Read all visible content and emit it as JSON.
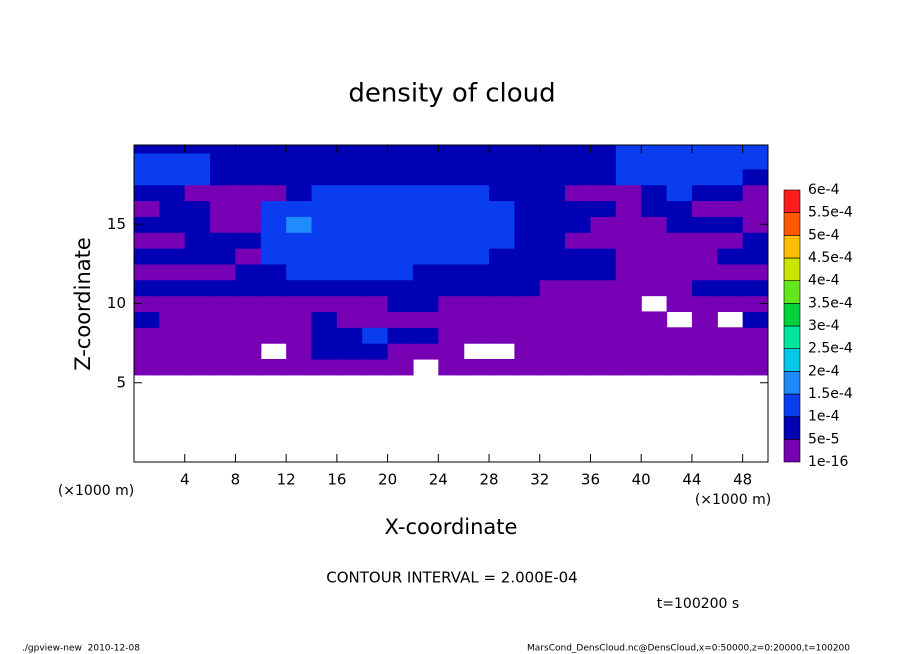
{
  "chart_data": {
    "type": "contour",
    "title": "density of cloud",
    "x_label": "X-coordinate",
    "y_label": "Z-coordinate",
    "x_unit_label": "(×1000 m)",
    "y_unit_label": "(×1000 m)",
    "contour_interval": "CONTOUR INTERVAL = 2.000E-04",
    "time_label": "t=100200 s",
    "footer_left": "./gpview-new  2010-12-08",
    "footer_right": "MarsCond_DensCloud.nc@DensCloud,x=0:50000,z=0:20000,t=100200",
    "xlim": [
      0,
      50
    ],
    "ylim": [
      0,
      20
    ],
    "xticks": [
      4,
      8,
      12,
      16,
      20,
      24,
      28,
      32,
      36,
      40,
      44,
      48
    ],
    "yticks": [
      5,
      10,
      15
    ],
    "levels": [
      {
        "value": 1e-16,
        "label": "1e-16"
      },
      {
        "value": 5e-05,
        "label": "5e-5"
      },
      {
        "value": 0.0001,
        "label": "1e-4"
      },
      {
        "value": 0.00015,
        "label": "1.5e-4"
      },
      {
        "value": 0.0002,
        "label": "2e-4"
      },
      {
        "value": 0.00025,
        "label": "2.5e-4"
      },
      {
        "value": 0.0003,
        "label": "3e-4"
      },
      {
        "value": 0.00035,
        "label": "3.5e-4"
      },
      {
        "value": 0.0004,
        "label": "4e-4"
      },
      {
        "value": 0.00045,
        "label": "4.5e-4"
      },
      {
        "value": 0.0005,
        "label": "5e-4"
      },
      {
        "value": 0.00055,
        "label": "5.5e-4"
      },
      {
        "value": 0.0006,
        "label": "6e-4"
      }
    ],
    "level_colors": [
      "#7800b4",
      "#0000b4",
      "#0a3cf0",
      "#1e8cff",
      "#00c8e6",
      "#00e6a0",
      "#00d23c",
      "#64e61e",
      "#c8e600",
      "#ffbe00",
      "#ff5a00",
      "#ff1e1e",
      "#ff9696"
    ],
    "x": [
      1,
      3,
      5,
      7,
      9,
      11,
      13,
      15,
      17,
      19,
      21,
      23,
      25,
      27,
      29,
      31,
      33,
      35,
      37,
      39,
      41,
      43,
      45,
      47,
      49
    ],
    "y": [
      6,
      7,
      8,
      9,
      10,
      11,
      12,
      13,
      14,
      15,
      16,
      17,
      18,
      19,
      20
    ],
    "values": [
      [
        2e-05,
        2e-05,
        2e-05,
        2e-05,
        2e-05,
        2e-05,
        2e-05,
        2e-05,
        2e-05,
        2e-05,
        2e-05,
        null,
        2e-05,
        2e-05,
        2e-05,
        2e-05,
        2e-05,
        2e-05,
        2e-05,
        2e-05,
        2e-05,
        2e-05,
        2e-05,
        2e-05,
        2e-05
      ],
      [
        2e-05,
        2e-05,
        2e-05,
        2e-05,
        2e-05,
        null,
        2e-05,
        7e-05,
        7e-05,
        7e-05,
        2e-05,
        2e-05,
        2e-05,
        null,
        null,
        2e-05,
        2e-05,
        2e-05,
        2e-05,
        2e-05,
        2e-05,
        2e-05,
        2e-05,
        2e-05,
        2e-05
      ],
      [
        2e-05,
        2e-05,
        2e-05,
        2e-05,
        2e-05,
        2e-05,
        2e-05,
        7e-05,
        7e-05,
        0.00012,
        7e-05,
        7e-05,
        2e-05,
        2e-05,
        2e-05,
        2e-05,
        2e-05,
        2e-05,
        2e-05,
        2e-05,
        2e-05,
        2e-05,
        2e-05,
        2e-05,
        2e-05
      ],
      [
        7e-05,
        2e-05,
        2e-05,
        2e-05,
        2e-05,
        2e-05,
        2e-05,
        7e-05,
        2e-05,
        2e-05,
        2e-05,
        2e-05,
        2e-05,
        2e-05,
        2e-05,
        2e-05,
        2e-05,
        2e-05,
        2e-05,
        2e-05,
        2e-05,
        null,
        2e-05,
        null,
        7e-05
      ],
      [
        2e-05,
        2e-05,
        2e-05,
        2e-05,
        2e-05,
        2e-05,
        2e-05,
        2e-05,
        2e-05,
        2e-05,
        7e-05,
        7e-05,
        2e-05,
        2e-05,
        2e-05,
        2e-05,
        2e-05,
        2e-05,
        2e-05,
        2e-05,
        null,
        2e-05,
        2e-05,
        2e-05,
        2e-05
      ],
      [
        7e-05,
        7e-05,
        7e-05,
        7e-05,
        7e-05,
        7e-05,
        7e-05,
        7e-05,
        7e-05,
        7e-05,
        7e-05,
        7e-05,
        7e-05,
        7e-05,
        7e-05,
        7e-05,
        2e-05,
        2e-05,
        2e-05,
        2e-05,
        2e-05,
        2e-05,
        7e-05,
        7e-05,
        7e-05
      ],
      [
        2e-05,
        2e-05,
        2e-05,
        2e-05,
        7e-05,
        7e-05,
        0.00012,
        0.00012,
        0.00012,
        0.00012,
        0.00012,
        7e-05,
        7e-05,
        7e-05,
        7e-05,
        7e-05,
        7e-05,
        7e-05,
        7e-05,
        2e-05,
        2e-05,
        2e-05,
        2e-05,
        2e-05,
        2e-05
      ],
      [
        7e-05,
        7e-05,
        7e-05,
        7e-05,
        2e-05,
        0.00012,
        0.00012,
        0.00012,
        0.00012,
        0.00012,
        0.00012,
        0.00012,
        0.00012,
        0.00012,
        7e-05,
        7e-05,
        7e-05,
        7e-05,
        7e-05,
        2e-05,
        2e-05,
        2e-05,
        2e-05,
        7e-05,
        7e-05
      ],
      [
        2e-05,
        2e-05,
        7e-05,
        7e-05,
        7e-05,
        0.00012,
        0.00012,
        0.00012,
        0.00012,
        0.00012,
        0.00012,
        0.00012,
        0.00012,
        0.00012,
        0.00012,
        7e-05,
        7e-05,
        2e-05,
        2e-05,
        2e-05,
        2e-05,
        2e-05,
        2e-05,
        2e-05,
        7e-05
      ],
      [
        7e-05,
        7e-05,
        7e-05,
        2e-05,
        2e-05,
        0.00012,
        0.00017,
        0.00012,
        0.00012,
        0.00012,
        0.00012,
        0.00012,
        0.00012,
        0.00012,
        0.00012,
        7e-05,
        7e-05,
        7e-05,
        2e-05,
        2e-05,
        2e-05,
        7e-05,
        7e-05,
        7e-05,
        2e-05
      ],
      [
        2e-05,
        7e-05,
        7e-05,
        2e-05,
        2e-05,
        0.00012,
        0.00012,
        0.00012,
        0.00012,
        0.00012,
        0.00012,
        0.00012,
        0.00012,
        0.00012,
        0.00012,
        7e-05,
        7e-05,
        7e-05,
        7e-05,
        2e-05,
        7e-05,
        7e-05,
        2e-05,
        2e-05,
        2e-05
      ],
      [
        7e-05,
        7e-05,
        2e-05,
        2e-05,
        2e-05,
        2e-05,
        7e-05,
        0.00012,
        0.00012,
        0.00012,
        0.00012,
        0.00012,
        0.00012,
        0.00012,
        7e-05,
        7e-05,
        7e-05,
        2e-05,
        2e-05,
        2e-05,
        7e-05,
        0.00012,
        7e-05,
        7e-05,
        2e-05
      ],
      [
        0.00012,
        0.00012,
        0.00012,
        7e-05,
        7e-05,
        7e-05,
        7e-05,
        7e-05,
        7e-05,
        7e-05,
        7e-05,
        7e-05,
        7e-05,
        7e-05,
        7e-05,
        7e-05,
        7e-05,
        7e-05,
        7e-05,
        0.00012,
        0.00012,
        0.00012,
        0.00012,
        0.00012,
        7e-05
      ],
      [
        0.00012,
        0.00012,
        0.00012,
        7e-05,
        7e-05,
        7e-05,
        7e-05,
        7e-05,
        7e-05,
        7e-05,
        7e-05,
        7e-05,
        7e-05,
        7e-05,
        7e-05,
        7e-05,
        7e-05,
        7e-05,
        7e-05,
        0.00012,
        0.00012,
        0.00012,
        0.00012,
        0.00012,
        0.00012
      ],
      [
        7e-05,
        7e-05,
        7e-05,
        7e-05,
        7e-05,
        7e-05,
        7e-05,
        7e-05,
        7e-05,
        7e-05,
        7e-05,
        7e-05,
        7e-05,
        7e-05,
        7e-05,
        7e-05,
        7e-05,
        7e-05,
        7e-05,
        0.00012,
        0.00012,
        0.00012,
        0.00012,
        0.00012,
        0.00012
      ]
    ]
  }
}
